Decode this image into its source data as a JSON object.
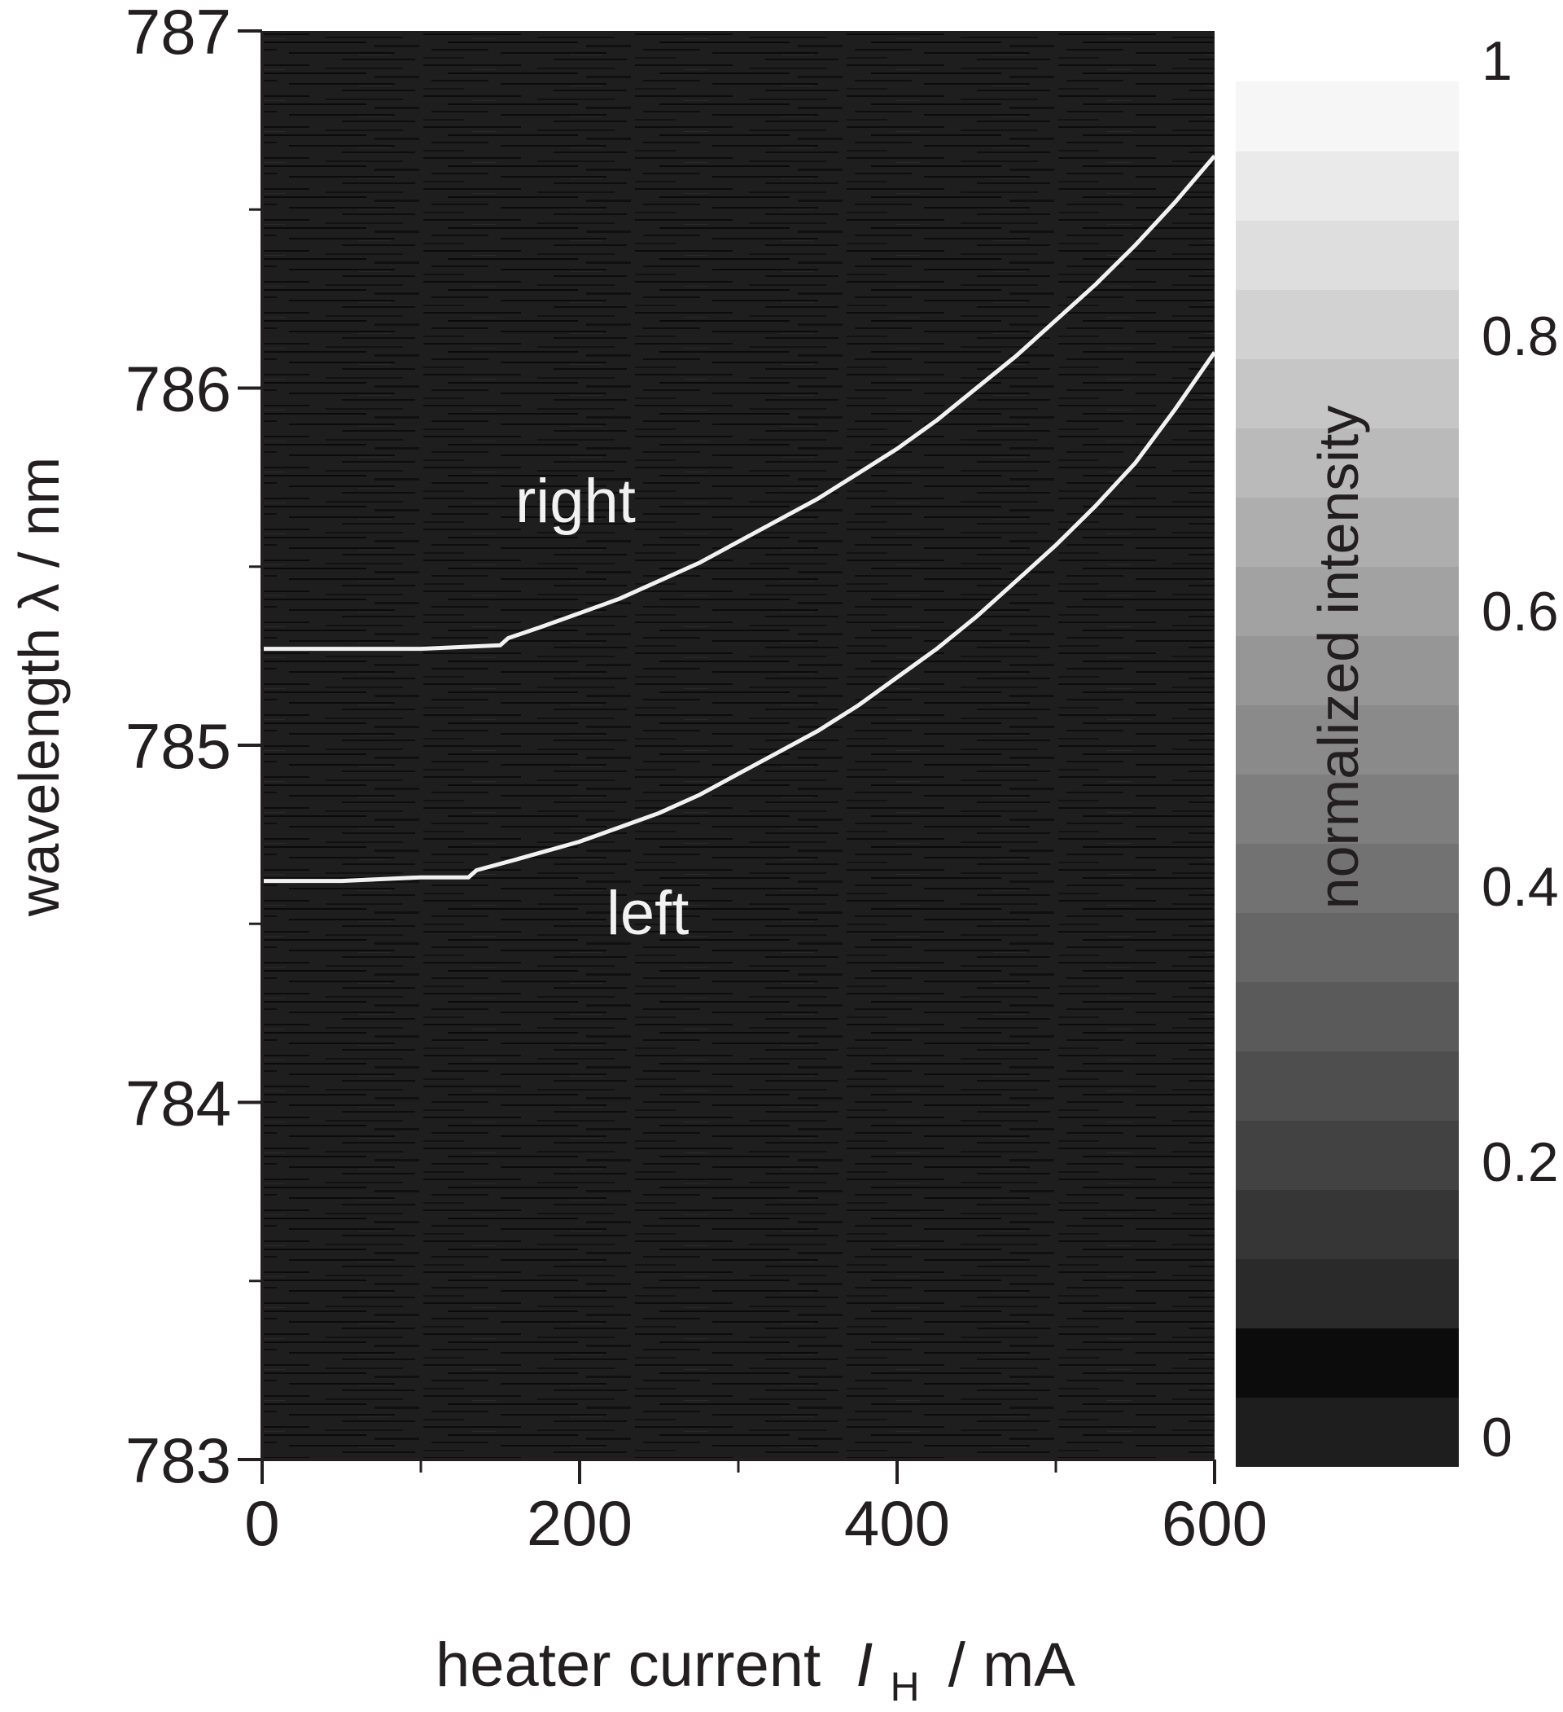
{
  "chart_data": {
    "type": "heatmap",
    "title": "",
    "xlabel": "heater current",
    "xlabel_symbol": "I",
    "xlabel_subscript": "H",
    "xlabel_unit": "/ mA",
    "ylabel": "wavelength λ / nm",
    "xlim": [
      0,
      600
    ],
    "ylim": [
      783,
      787
    ],
    "x_ticks": [
      0,
      200,
      400,
      600
    ],
    "x_tick_labels": [
      "0",
      "200",
      "400",
      "600"
    ],
    "x_minor_ticks": [
      100,
      300,
      500
    ],
    "y_ticks": [
      783,
      784,
      785,
      786,
      787
    ],
    "y_tick_labels": [
      "783",
      "784",
      "785",
      "786",
      "787"
    ],
    "y_minor_ticks": [
      783.5,
      784.5,
      785.5,
      786.5
    ],
    "colorbar": {
      "label": "normalized intensity",
      "range": [
        0,
        1
      ],
      "ticks": [
        0,
        0.2,
        0.4,
        0.6,
        0.8,
        1
      ],
      "tick_labels": [
        "0",
        "0.2",
        "0.4",
        "0.6",
        "0.8",
        "1"
      ],
      "colormap": "grayscale",
      "levels": 20
    },
    "background_color": "#1e1e1e",
    "line_color": "#f2f2f2",
    "annotations": [
      {
        "text": "right",
        "x": 102,
        "y": 785.68
      },
      {
        "text": "left",
        "x": 124,
        "y": 784.53
      }
    ],
    "series": [
      {
        "name": "right",
        "x": [
          0,
          50,
          100,
          150,
          155,
          175,
          200,
          225,
          250,
          275,
          300,
          325,
          350,
          375,
          400,
          425,
          450,
          475,
          500,
          525,
          550,
          575,
          600
        ],
        "y": [
          785.27,
          785.27,
          785.27,
          785.28,
          785.3,
          785.33,
          785.37,
          785.41,
          785.46,
          785.51,
          785.57,
          785.63,
          785.69,
          785.76,
          785.83,
          785.91,
          786.0,
          786.09,
          786.19,
          786.29,
          786.4,
          786.52,
          786.65
        ]
      },
      {
        "name": "left",
        "x": [
          0,
          50,
          100,
          130,
          135,
          160,
          200,
          225,
          250,
          275,
          300,
          325,
          350,
          375,
          400,
          425,
          450,
          475,
          500,
          525,
          550,
          575,
          600
        ],
        "y": [
          784.62,
          784.62,
          784.63,
          784.63,
          784.65,
          784.68,
          784.73,
          784.77,
          784.81,
          784.86,
          784.92,
          784.98,
          785.04,
          785.11,
          785.19,
          785.27,
          785.36,
          785.46,
          785.56,
          785.67,
          785.79,
          785.94,
          786.1
        ]
      }
    ]
  }
}
